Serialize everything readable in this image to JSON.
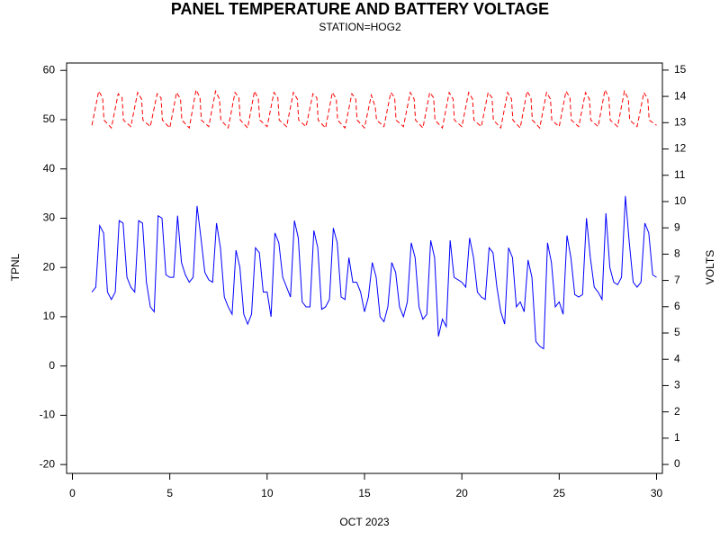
{
  "chart_data": {
    "type": "line",
    "title": "PANEL TEMPERATURE AND BATTERY VOLTAGE",
    "subtitle": "STATION=HOG2",
    "xlabel": "OCT 2023",
    "ylabel": "TPNL",
    "y2label": "VOLTS",
    "xlim": [
      -0.3,
      30.3
    ],
    "xticks": [
      0,
      5,
      10,
      15,
      20,
      25,
      30
    ],
    "ylim": [
      -21.8,
      61.5
    ],
    "yticks": [
      -20,
      -10,
      0,
      10,
      20,
      30,
      40,
      50,
      60
    ],
    "y2lim": [
      -0.34,
      15.27
    ],
    "y2ticks": [
      0,
      1,
      2,
      3,
      4,
      5,
      6,
      7,
      8,
      9,
      10,
      11,
      12,
      13,
      14,
      15
    ],
    "series": [
      {
        "color": "#0000ff",
        "line_style": "solid",
        "x": [
          1,
          1.2,
          1.4,
          1.6,
          1.8,
          2,
          2.2,
          2.4,
          2.6,
          2.8,
          3,
          3.2,
          3.4,
          3.6,
          3.8,
          4,
          4.2,
          4.4,
          4.6,
          4.8,
          5,
          5.2,
          5.4,
          5.6,
          5.8,
          6,
          6.2,
          6.4,
          6.6,
          6.8,
          7,
          7.2,
          7.4,
          7.6,
          7.8,
          8,
          8.2,
          8.4,
          8.6,
          8.8,
          9,
          9.2,
          9.4,
          9.6,
          9.8,
          10,
          10.2,
          10.4,
          10.6,
          10.8,
          11,
          11.2,
          11.4,
          11.6,
          11.8,
          12,
          12.2,
          12.4,
          12.6,
          12.8,
          13,
          13.2,
          13.4,
          13.6,
          13.8,
          14,
          14.2,
          14.4,
          14.6,
          14.8,
          15,
          15.2,
          15.4,
          15.6,
          15.8,
          16,
          16.2,
          16.4,
          16.6,
          16.8,
          17,
          17.2,
          17.4,
          17.6,
          17.8,
          18,
          18.2,
          18.4,
          18.6,
          18.8,
          19,
          19.2,
          19.4,
          19.6,
          19.8,
          20,
          20.2,
          20.4,
          20.6,
          20.8,
          21,
          21.2,
          21.4,
          21.6,
          21.8,
          22,
          22.2,
          22.4,
          22.6,
          22.8,
          23,
          23.2,
          23.4,
          23.6,
          23.8,
          24,
          24.2,
          24.4,
          24.6,
          24.8,
          25,
          25.2,
          25.4,
          25.6,
          25.8,
          26,
          26.2,
          26.4,
          26.6,
          26.8,
          27,
          27.2,
          27.4,
          27.6,
          27.8,
          28,
          28.2,
          28.4,
          28.6,
          28.8,
          29,
          29.2,
          29.4,
          29.6,
          29.8,
          30
        ],
        "values": [
          15,
          16,
          28.5,
          27,
          15,
          13.5,
          15,
          29.5,
          29,
          18,
          16,
          15,
          29.5,
          29,
          17,
          12,
          11,
          30.5,
          30,
          18.5,
          18,
          18,
          30.5,
          21,
          18.5,
          17,
          18,
          32.5,
          26,
          19,
          17.5,
          17,
          29,
          24,
          14,
          12,
          10.5,
          23.5,
          20,
          10.5,
          8.5,
          10.5,
          24,
          23,
          15,
          15,
          10,
          27,
          25,
          18,
          16,
          14,
          29.5,
          26,
          13,
          12,
          12,
          27.5,
          24,
          11.5,
          12,
          13.5,
          28,
          25,
          14,
          13.5,
          22,
          17,
          17,
          15,
          11,
          14,
          21,
          18,
          10,
          9,
          12,
          21,
          19,
          12,
          10,
          13,
          25,
          22,
          12,
          9.5,
          10.5,
          25.5,
          22,
          6,
          9.5,
          8,
          25.5,
          18,
          17.5,
          17,
          16,
          26,
          22,
          15,
          14,
          13.5,
          24,
          23,
          16,
          11,
          8.5,
          24,
          22,
          12,
          13,
          11,
          21.5,
          18,
          5,
          4,
          3.5,
          25,
          21,
          12,
          13,
          10.5,
          26.5,
          22,
          14.5,
          14,
          14.5,
          30,
          22,
          16,
          15,
          13.5,
          31,
          20,
          17,
          16.5,
          18,
          34.5,
          25,
          17,
          16,
          17,
          29,
          27,
          18.5,
          18
        ]
      },
      {
        "color": "#ff0000",
        "line_style": "dashed",
        "axis": "y2",
        "x": [
          1,
          1.35,
          1.55,
          1.62,
          2,
          2.35,
          2.55,
          2.62,
          3,
          3.35,
          3.55,
          3.62,
          4,
          4.35,
          4.55,
          4.62,
          5,
          5.35,
          5.55,
          5.62,
          6,
          6.35,
          6.55,
          6.62,
          7,
          7.35,
          7.55,
          7.62,
          8,
          8.35,
          8.55,
          8.62,
          9,
          9.35,
          9.55,
          9.62,
          10,
          10.35,
          10.55,
          10.62,
          11,
          11.35,
          11.55,
          11.62,
          12,
          12.35,
          12.55,
          12.62,
          13,
          13.35,
          13.55,
          13.62,
          14,
          14.35,
          14.55,
          14.62,
          15,
          15.35,
          15.55,
          15.62,
          16,
          16.35,
          16.55,
          16.62,
          17,
          17.35,
          17.55,
          17.62,
          18,
          18.35,
          18.55,
          18.62,
          19,
          19.35,
          19.55,
          19.62,
          20,
          20.35,
          20.55,
          20.62,
          21,
          21.35,
          21.55,
          21.62,
          22,
          22.35,
          22.55,
          22.62,
          23,
          23.35,
          23.55,
          23.62,
          24,
          24.35,
          24.55,
          24.62,
          25,
          25.35,
          25.55,
          25.62,
          26,
          26.35,
          26.55,
          26.62,
          27,
          27.35,
          27.55,
          27.62,
          28,
          28.35,
          28.55,
          28.62,
          29,
          29.35,
          29.55,
          29.62,
          30
        ],
        "values": [
          12.9,
          14.2,
          13.95,
          13.1,
          12.8,
          14.1,
          13.95,
          13.1,
          12.85,
          14.15,
          13.9,
          13.1,
          12.85,
          14.1,
          13.95,
          13.1,
          12.8,
          14.15,
          13.9,
          13.1,
          12.8,
          14.25,
          13.95,
          13.1,
          12.85,
          14.2,
          13.9,
          13.1,
          12.8,
          14.15,
          13.95,
          13.1,
          12.8,
          14.2,
          13.9,
          13.1,
          12.85,
          14.15,
          13.95,
          13.1,
          12.85,
          14.15,
          13.9,
          13.1,
          12.85,
          14.1,
          13.95,
          13.1,
          12.8,
          14.15,
          13.9,
          13.1,
          12.8,
          14.1,
          13.9,
          13.1,
          12.8,
          14.05,
          13.6,
          13.1,
          12.85,
          14.15,
          13.95,
          13.1,
          12.85,
          14.15,
          13.9,
          13.1,
          12.8,
          14.15,
          13.95,
          13.1,
          12.8,
          14.15,
          13.9,
          13.1,
          12.85,
          14.15,
          13.9,
          13.1,
          12.85,
          14.15,
          13.95,
          13.1,
          12.8,
          14.15,
          13.9,
          13.1,
          12.8,
          14.2,
          13.95,
          13.1,
          12.8,
          14.15,
          13.9,
          13.1,
          12.85,
          14.2,
          13.95,
          13.1,
          12.85,
          14.15,
          13.9,
          13.1,
          12.85,
          14.25,
          13.95,
          13.1,
          12.85,
          14.2,
          13.9,
          13.1,
          12.85,
          14.15,
          13.9,
          13.1,
          12.9
        ]
      }
    ]
  }
}
